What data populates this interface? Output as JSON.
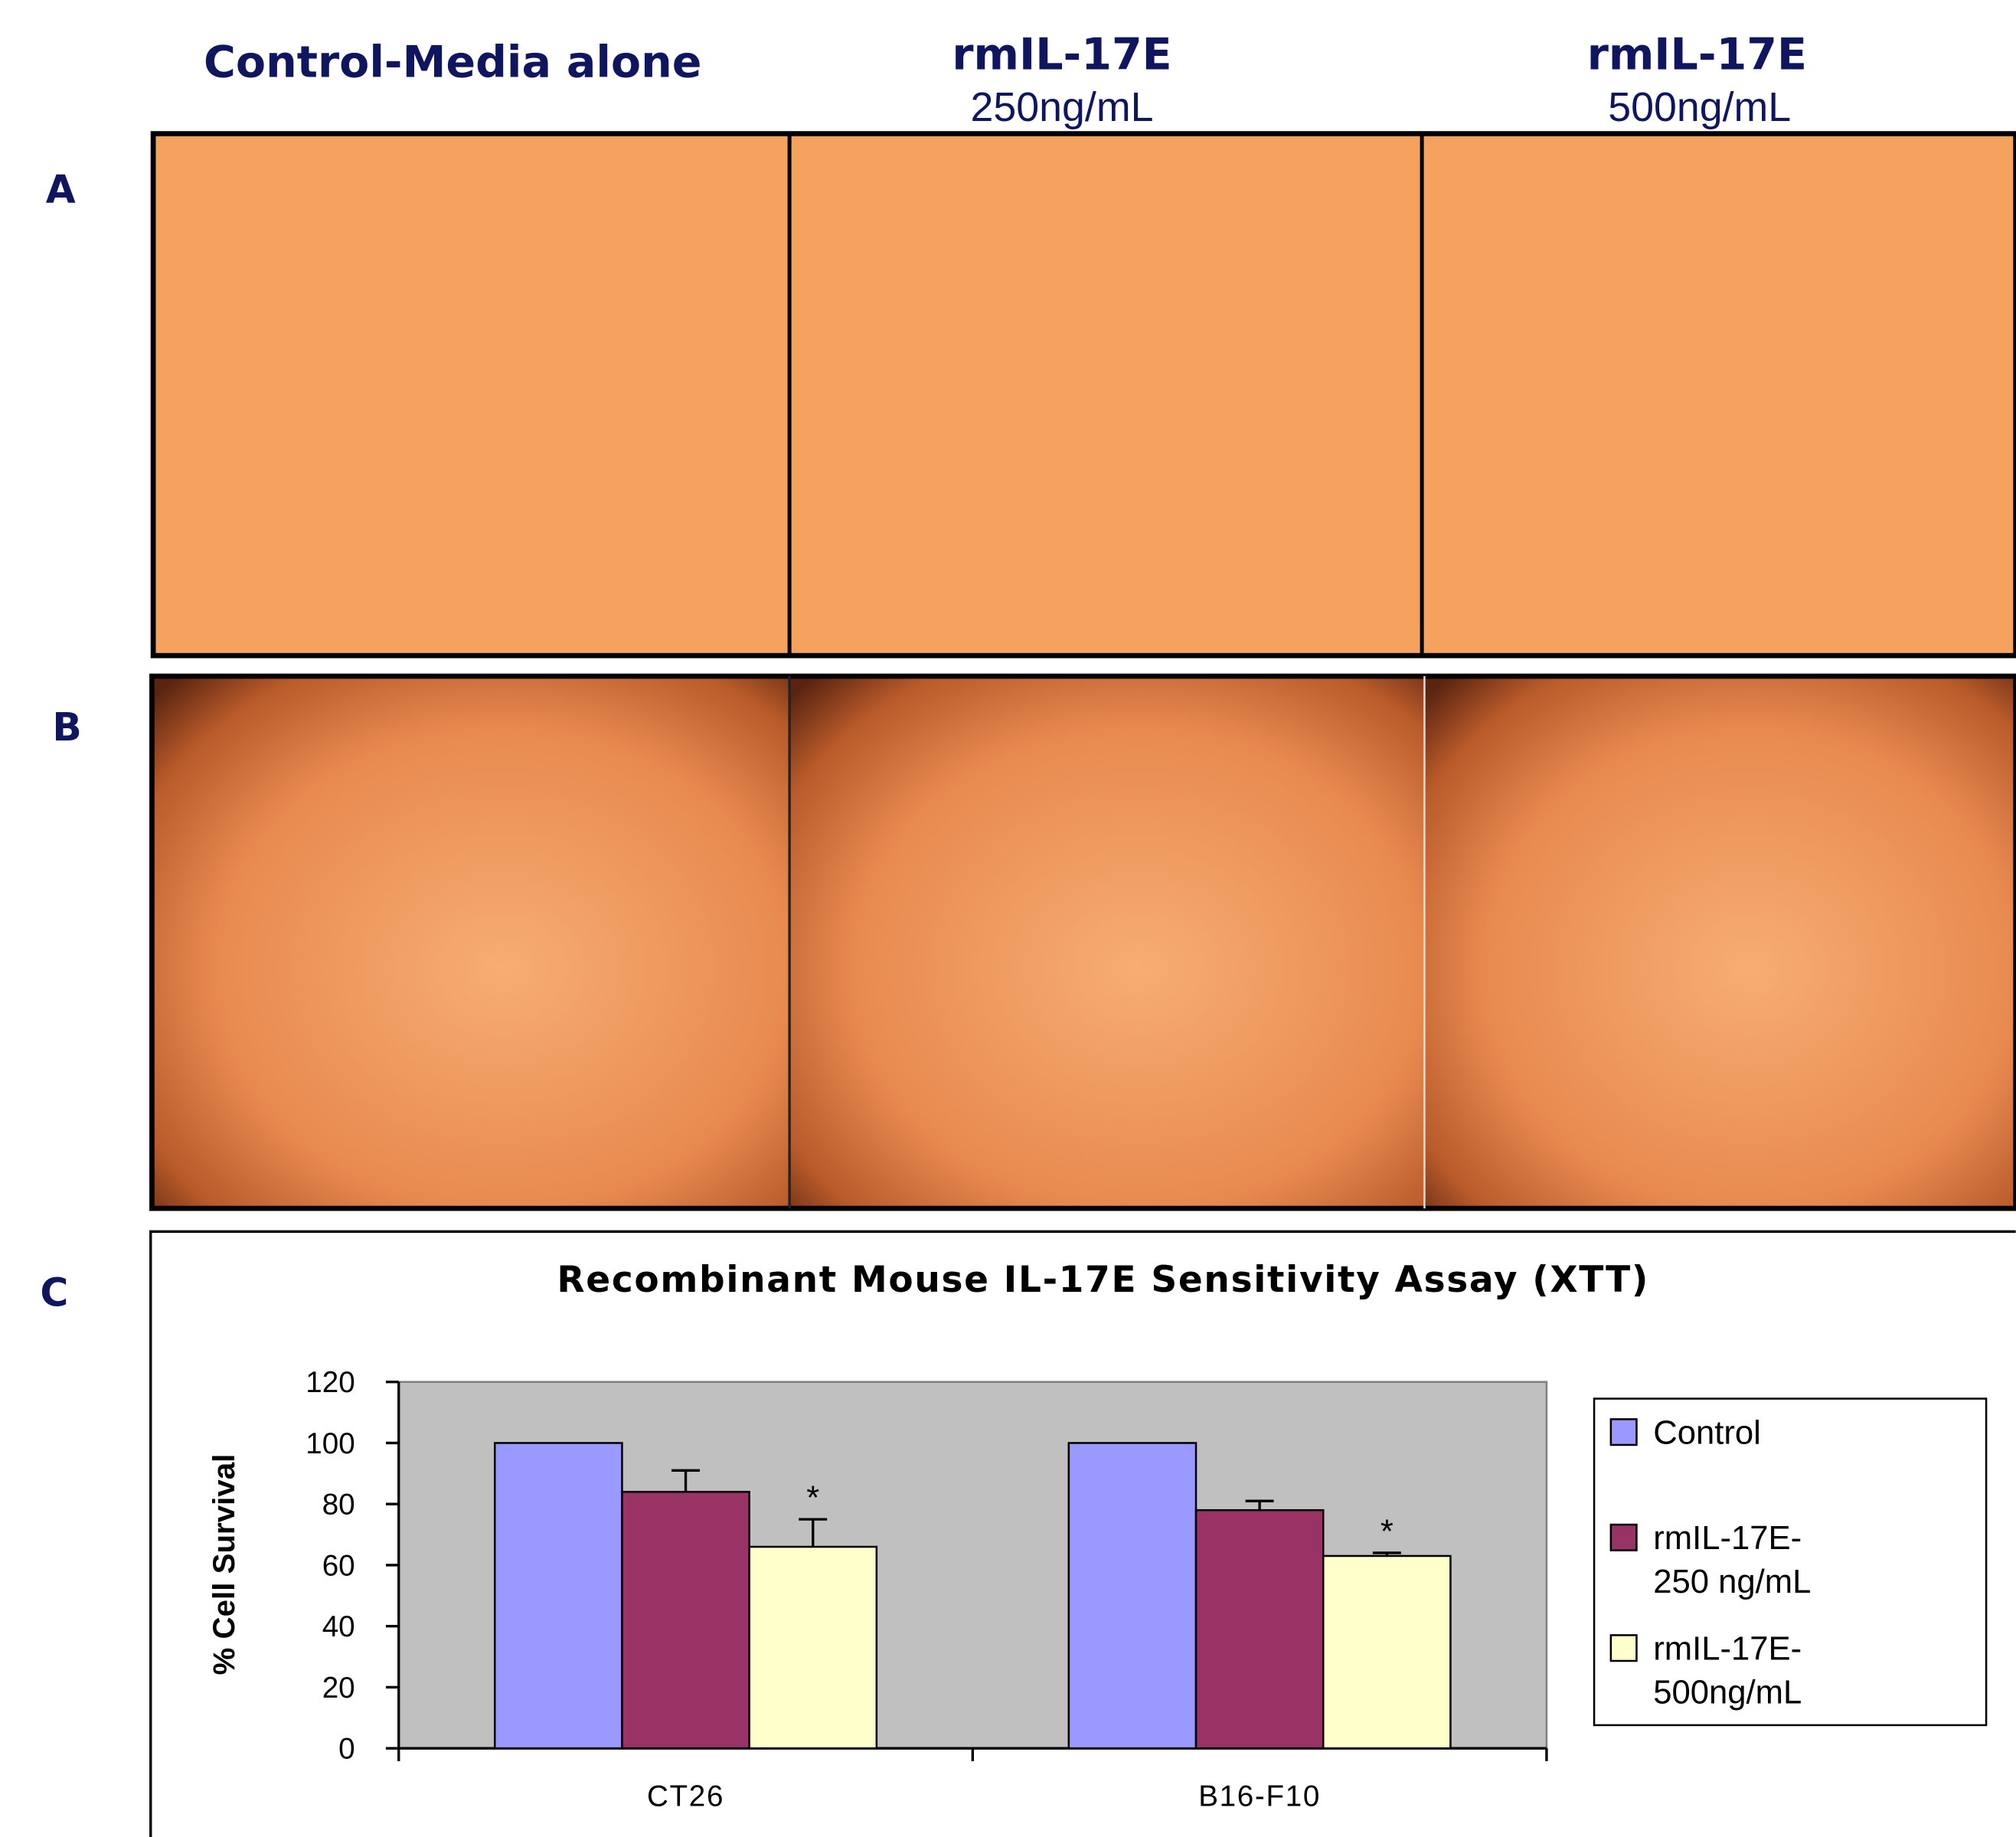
{
  "columns": [
    {
      "title": "Control-Media alone"
    },
    {
      "title": "rmIL-17E",
      "subtitle": "250ng/mL"
    },
    {
      "title": "rmIL-17E",
      "subtitle": "500ng/mL"
    }
  ],
  "panels": [
    "A",
    "B",
    "C"
  ],
  "chart_data": {
    "type": "bar",
    "title": "Recombinant Mouse IL-17E Sensitivity Assay (XTT)",
    "y_label": "% Cell Survival",
    "categories": [
      "CT26",
      "B16-F10"
    ],
    "series": [
      {
        "name": "Control",
        "color": "#9999ff",
        "values": [
          100,
          100
        ]
      },
      {
        "name": "rmIL-17E-250 ng/mL",
        "color": "#993366",
        "values": [
          84,
          78
        ],
        "errors": [
          7,
          3
        ]
      },
      {
        "name": "rmIL-17E-500ng/mL",
        "color": "#ffffcc",
        "values": [
          66,
          63
        ],
        "errors": [
          9,
          1
        ],
        "significance": [
          "*",
          "*"
        ]
      }
    ],
    "ylim": [
      0,
      120
    ],
    "yticks": [
      0,
      20,
      40,
      60,
      80,
      100,
      120
    ],
    "plot_background": "#c0c0c0",
    "legend": "right"
  }
}
